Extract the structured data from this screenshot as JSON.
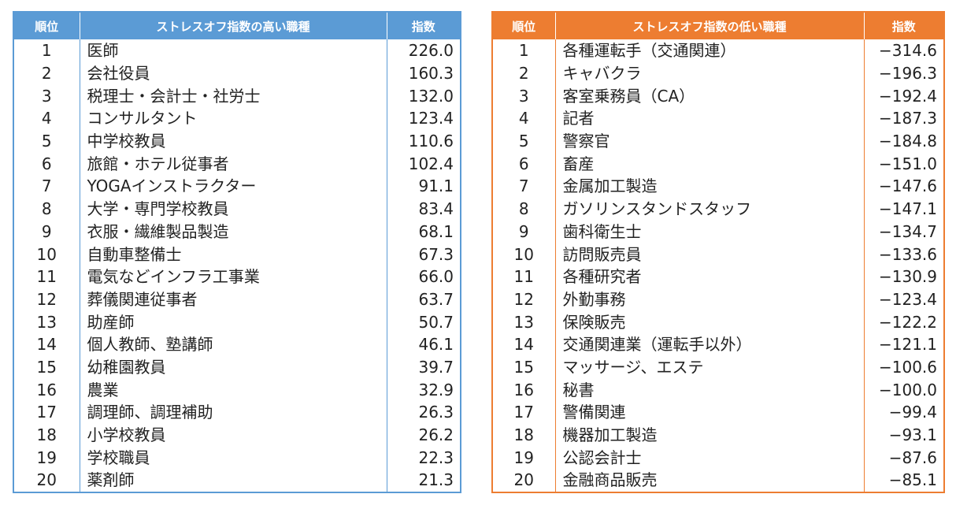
{
  "high": {
    "headers": {
      "rank": "順位",
      "job": "ストレスオフ指数の高い職種",
      "index": "指数"
    },
    "rows": [
      {
        "rank": "1",
        "job": "医師",
        "index": "226.0"
      },
      {
        "rank": "2",
        "job": "会社役員",
        "index": "160.3"
      },
      {
        "rank": "3",
        "job": "税理士・会計士・社労士",
        "index": "132.0"
      },
      {
        "rank": "4",
        "job": "コンサルタント",
        "index": "123.4"
      },
      {
        "rank": "5",
        "job": "中学校教員",
        "index": "110.6"
      },
      {
        "rank": "6",
        "job": "旅館・ホテル従事者",
        "index": "102.4"
      },
      {
        "rank": "7",
        "job": "YOGAインストラクター",
        "index": "91.1"
      },
      {
        "rank": "8",
        "job": "大学・専門学校教員",
        "index": "83.4"
      },
      {
        "rank": "9",
        "job": "衣服・繊維製品製造",
        "index": "68.1"
      },
      {
        "rank": "10",
        "job": "自動車整備士",
        "index": "67.3"
      },
      {
        "rank": "11",
        "job": "電気などインフラ工事業",
        "index": "66.0"
      },
      {
        "rank": "12",
        "job": "葬儀関連従事者",
        "index": "63.7"
      },
      {
        "rank": "13",
        "job": "助産師",
        "index": "50.7"
      },
      {
        "rank": "14",
        "job": "個人教師、塾講師",
        "index": "46.1"
      },
      {
        "rank": "15",
        "job": "幼稚園教員",
        "index": "39.7"
      },
      {
        "rank": "16",
        "job": "農業",
        "index": "32.9"
      },
      {
        "rank": "17",
        "job": "調理師、調理補助",
        "index": "26.3"
      },
      {
        "rank": "18",
        "job": "小学校教員",
        "index": "26.2"
      },
      {
        "rank": "19",
        "job": "学校職員",
        "index": "22.3"
      },
      {
        "rank": "20",
        "job": "薬剤師",
        "index": "21.3"
      }
    ]
  },
  "low": {
    "headers": {
      "rank": "順位",
      "job": "ストレスオフ指数の低い職種",
      "index": "指数"
    },
    "rows": [
      {
        "rank": "1",
        "job": "各種運転手（交通関連）",
        "index": "−314.6"
      },
      {
        "rank": "2",
        "job": "キャバクラ",
        "index": "−196.3"
      },
      {
        "rank": "3",
        "job": "客室乗務員（CA）",
        "index": "−192.4"
      },
      {
        "rank": "4",
        "job": "記者",
        "index": "−187.3"
      },
      {
        "rank": "5",
        "job": "警察官",
        "index": "−184.8"
      },
      {
        "rank": "6",
        "job": "畜産",
        "index": "−151.0"
      },
      {
        "rank": "7",
        "job": "金属加工製造",
        "index": "−147.6"
      },
      {
        "rank": "8",
        "job": "ガソリンスタンドスタッフ",
        "index": "−147.1"
      },
      {
        "rank": "9",
        "job": "歯科衛生士",
        "index": "−134.7"
      },
      {
        "rank": "10",
        "job": "訪問販売員",
        "index": "−133.6"
      },
      {
        "rank": "11",
        "job": "各種研究者",
        "index": "−130.9"
      },
      {
        "rank": "12",
        "job": "外勤事務",
        "index": "−123.4"
      },
      {
        "rank": "13",
        "job": "保険販売",
        "index": "−122.2"
      },
      {
        "rank": "14",
        "job": "交通関連業（運転手以外）",
        "index": "−121.1"
      },
      {
        "rank": "15",
        "job": "マッサージ、エステ",
        "index": "−100.6"
      },
      {
        "rank": "16",
        "job": "秘書",
        "index": "−100.0"
      },
      {
        "rank": "17",
        "job": "警備関連",
        "index": "−99.4"
      },
      {
        "rank": "18",
        "job": "機器加工製造",
        "index": "−93.1"
      },
      {
        "rank": "19",
        "job": "公認会計士",
        "index": "−87.6"
      },
      {
        "rank": "20",
        "job": "金融商品販売",
        "index": "−85.1"
      }
    ]
  },
  "colors": {
    "high_accent": "#5b9bd5",
    "low_accent": "#ed7d31",
    "header_text": "#ffffff"
  }
}
